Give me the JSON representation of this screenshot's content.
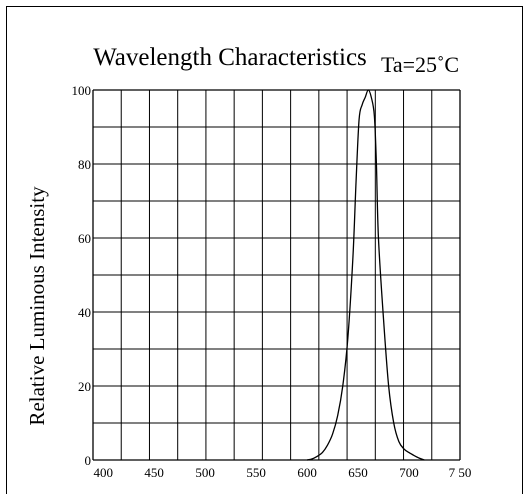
{
  "chart_data": {
    "type": "line",
    "title": "Wavelength Characteristics",
    "subtitle": "Ta=25˚C",
    "xlabel": "",
    "ylabel": "Relative Luminous Intensity",
    "xlim": [
      390,
      750
    ],
    "ylim": [
      0,
      100
    ],
    "x_ticks": [
      400,
      450,
      500,
      550,
      600,
      650,
      700,
      750
    ],
    "x_tick_labels": [
      "400",
      "450",
      "500",
      "550",
      "600",
      "650",
      "700",
      "7 50"
    ],
    "y_ticks": [
      0,
      20,
      40,
      60,
      80,
      100
    ],
    "y_tick_labels": [
      "0",
      "20",
      "40",
      "60",
      "80",
      "100"
    ],
    "grid": true,
    "series": [
      {
        "x": [
          600,
          605,
          610,
          615,
          620,
          625,
          630,
          635,
          640,
          645,
          648,
          651,
          654,
          657,
          660,
          663,
          666,
          668,
          670,
          675,
          680,
          685,
          690,
          695,
          700,
          705,
          710,
          715
        ],
        "y": [
          0,
          0.3,
          1,
          2,
          4,
          7,
          12,
          20,
          33,
          55,
          75,
          92,
          96,
          98,
          100,
          98,
          93,
          80,
          60,
          38,
          20,
          10,
          5,
          3,
          2,
          1.2,
          0.5,
          0
        ]
      }
    ]
  },
  "colors": {
    "line": "#000000",
    "grid": "#000000",
    "background": "#ffffff"
  }
}
